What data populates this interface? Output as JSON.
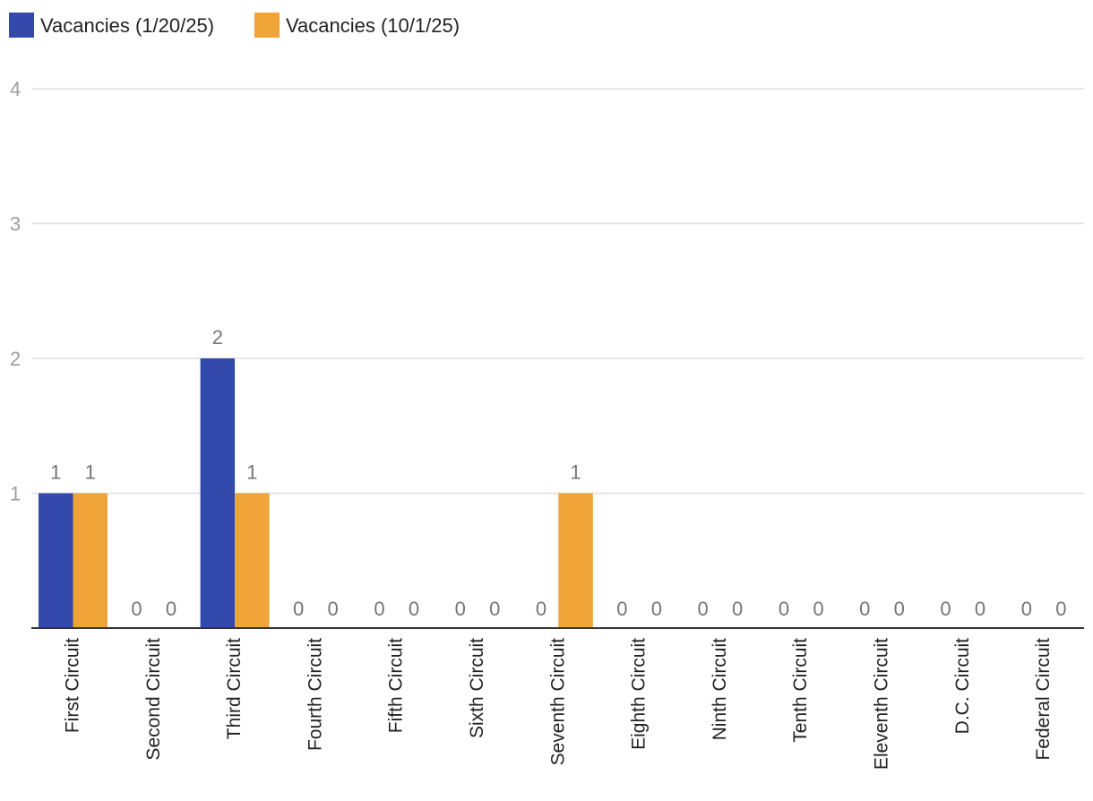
{
  "chart_data": {
    "type": "bar",
    "categories": [
      "First Circuit",
      "Second Circuit",
      "Third Circuit",
      "Fourth Circuit",
      "Fifth Circuit",
      "Sixth Circuit",
      "Seventh Circuit",
      "Eighth Circuit",
      "Ninth Circuit",
      "Tenth Circuit",
      "Eleventh Circuit",
      "D.C. Circuit",
      "Federal Circuit"
    ],
    "series": [
      {
        "name": "Vacancies (1/20/25)",
        "values": [
          1,
          0,
          2,
          0,
          0,
          0,
          0,
          0,
          0,
          0,
          0,
          0,
          0
        ],
        "color": "#334aac"
      },
      {
        "name": "Vacancies (10/1/25)",
        "values": [
          1,
          0,
          1,
          0,
          0,
          0,
          1,
          0,
          0,
          0,
          0,
          0,
          0
        ],
        "color": "#f0a437"
      }
    ],
    "yticks": [
      1,
      2,
      3,
      4
    ],
    "ylim": [
      0,
      4
    ],
    "grid": true,
    "legend_position": "top-left",
    "data_labels": true
  }
}
